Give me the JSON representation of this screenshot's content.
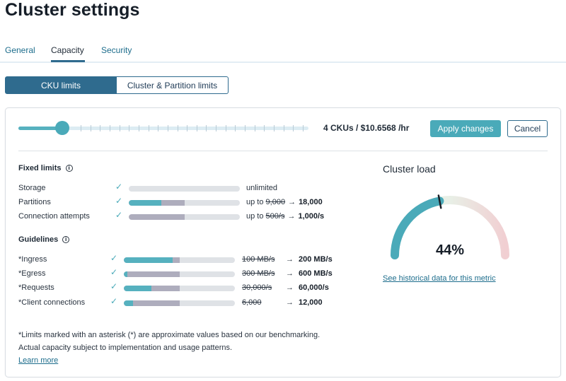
{
  "page": {
    "title": "Cluster settings"
  },
  "tabs": [
    {
      "label": "General"
    },
    {
      "label": "Capacity"
    },
    {
      "label": "Security"
    }
  ],
  "segment": {
    "cku_limits": "CKU limits",
    "cluster_partition_limits": "Cluster & Partition limits"
  },
  "slider": {
    "summary": "4 CKUs / $10.6568 /hr",
    "level": 0.15
  },
  "actions": {
    "apply": "Apply changes",
    "cancel": "Cancel"
  },
  "fixed_limits": {
    "heading": "Fixed limits",
    "info_glyph": "i",
    "rows": [
      {
        "label": "Storage",
        "used": 0,
        "current": 0,
        "prefix": "",
        "old": "",
        "arrow": "",
        "new": "",
        "plain": "unlimited"
      },
      {
        "label": "Partitions",
        "used": 0.5,
        "current": 0.29,
        "prefix": "up to ",
        "old": "9,000",
        "arrow": "→",
        "new": "18,000",
        "plain": ""
      },
      {
        "label": "Connection attempts",
        "used": 0.5,
        "current": 0,
        "prefix": "up to ",
        "old": "500/s",
        "arrow": "→",
        "new": "1,000/s",
        "plain": ""
      }
    ],
    "check_glyph": "✓"
  },
  "guidelines": {
    "heading": "Guidelines",
    "info_glyph": "i",
    "rows": [
      {
        "label": "*Ingress",
        "used": 0.5,
        "current": 0.44,
        "old": "100 MB/s",
        "arrow": "→",
        "new": "200 MB/s"
      },
      {
        "label": "*Egress",
        "used": 0.5,
        "current": 0.03,
        "old": "300 MB/s",
        "arrow": "→",
        "new": "600 MB/s"
      },
      {
        "label": "*Requests",
        "used": 0.5,
        "current": 0.25,
        "old": "30,000/s",
        "arrow": "→",
        "new": "60,000/s"
      },
      {
        "label": "*Client connections",
        "used": 0.5,
        "current": 0.08,
        "old": "6,000",
        "arrow": "→",
        "new": "12,000"
      }
    ]
  },
  "footnote": {
    "line1": "*Limits marked with an asterisk (*) are approximate values based on our benchmarking.",
    "line2": "Actual capacity subject to implementation and usage patterns.",
    "learn_more": "Learn more"
  },
  "cluster_load": {
    "title": "Cluster load",
    "percent_label": "44%",
    "value": 0.44,
    "link": "See historical data for this metric",
    "colors": {
      "filled": "#4aaab9",
      "mid": "#e8efe6",
      "end": "#f1cfd2"
    }
  }
}
